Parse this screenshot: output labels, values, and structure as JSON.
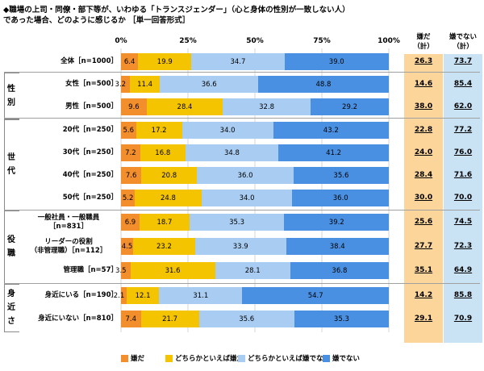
{
  "title_line1": "◆職場の上司・同僚・部下等が、いわゆる「トランスジェンダー」（心と身体の性別が一致しない人）",
  "title_line2": "であった場合、どのように感じるか ［単一回答形式］",
  "col_header_1": [
    "嫌だ",
    "（計）"
  ],
  "col_header_2": [
    "嫌でない",
    "（計）"
  ],
  "colors": {
    "s1": "#f28e2b",
    "s2": "#f5c400",
    "s3": "#a9cdf2",
    "s4": "#4a90e2",
    "col1bg": "#fbd59a",
    "col2bg": "#c9e3f5"
  },
  "chart_data": {
    "type": "bar",
    "orientation": "horizontal-stacked-100",
    "xlim": [
      0,
      100
    ],
    "x_ticks": [
      "0%",
      "25%",
      "50%",
      "75%",
      "100%"
    ],
    "series": [
      {
        "name": "嫌だ",
        "color": "#f28e2b"
      },
      {
        "name": "どちらかといえば嫌だ",
        "color": "#f5c400"
      },
      {
        "name": "どちらかといえば嫌でない",
        "color": "#a9cdf2"
      },
      {
        "name": "嫌でない",
        "color": "#4a90e2"
      }
    ],
    "groups": [
      {
        "label": "",
        "start": 0,
        "end": 0
      },
      {
        "label": "性別",
        "start": 1,
        "end": 2
      },
      {
        "label": "世代",
        "start": 3,
        "end": 6
      },
      {
        "label": "役職",
        "start": 7,
        "end": 9
      },
      {
        "label": "身近さ",
        "start": 10,
        "end": 11
      }
    ],
    "rows": [
      {
        "label": [
          "全体［n=1000］"
        ],
        "values": [
          6.4,
          19.9,
          34.7,
          39.0
        ],
        "dislike_total": "26.3",
        "not_dislike_total": "73.7"
      },
      {
        "label": [
          "女性［n=500］"
        ],
        "values": [
          3.2,
          11.4,
          36.6,
          48.8
        ],
        "dislike_total": "14.6",
        "not_dislike_total": "85.4"
      },
      {
        "label": [
          "男性［n=500］"
        ],
        "values": [
          9.6,
          28.4,
          32.8,
          29.2
        ],
        "dislike_total": "38.0",
        "not_dislike_total": "62.0"
      },
      {
        "label": [
          "20代［n=250］"
        ],
        "values": [
          5.6,
          17.2,
          34.0,
          43.2
        ],
        "dislike_total": "22.8",
        "not_dislike_total": "77.2"
      },
      {
        "label": [
          "30代［n=250］"
        ],
        "values": [
          7.2,
          16.8,
          34.8,
          41.2
        ],
        "dislike_total": "24.0",
        "not_dislike_total": "76.0"
      },
      {
        "label": [
          "40代［n=250］"
        ],
        "values": [
          7.6,
          20.8,
          36.0,
          35.6
        ],
        "dislike_total": "28.4",
        "not_dislike_total": "71.6"
      },
      {
        "label": [
          "50代［n=250］"
        ],
        "values": [
          5.2,
          24.8,
          34.0,
          36.0
        ],
        "dislike_total": "30.0",
        "not_dislike_total": "70.0"
      },
      {
        "label": [
          "一般社員・一般職員",
          "［n=831］"
        ],
        "values": [
          6.9,
          18.7,
          35.3,
          39.2
        ],
        "dislike_total": "25.6",
        "not_dislike_total": "74.5"
      },
      {
        "label": [
          "リーダーの役割",
          "（非管理職）［n=112］"
        ],
        "values": [
          4.5,
          23.2,
          33.9,
          38.4
        ],
        "dislike_total": "27.7",
        "not_dislike_total": "72.3"
      },
      {
        "label": [
          "管理職［n=57］"
        ],
        "values": [
          3.5,
          31.6,
          28.1,
          36.8
        ],
        "dislike_total": "35.1",
        "not_dislike_total": "64.9"
      },
      {
        "label": [
          "身近にいる［n=190］"
        ],
        "values": [
          2.1,
          12.1,
          31.1,
          54.7
        ],
        "dislike_total": "14.2",
        "not_dislike_total": "85.8"
      },
      {
        "label": [
          "身近にいない［n=810］"
        ],
        "values": [
          7.4,
          21.7,
          35.6,
          35.3
        ],
        "dislike_total": "29.1",
        "not_dislike_total": "70.9"
      }
    ]
  }
}
